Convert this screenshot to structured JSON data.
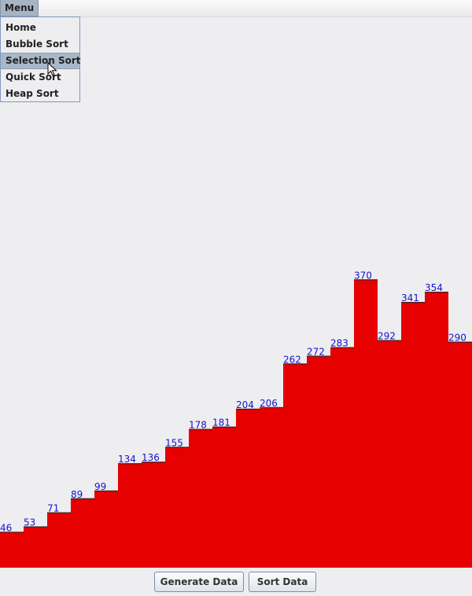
{
  "menubar": {
    "menu_label": "Menu"
  },
  "menu": {
    "items": [
      "Home",
      "Bubble Sort",
      "Selection Sort",
      "Quick Sort",
      "Heap Sort"
    ],
    "highlighted_index": 2
  },
  "chart_data": {
    "type": "bar",
    "values": [
      46,
      53,
      71,
      89,
      99,
      134,
      136,
      155,
      178,
      181,
      204,
      206,
      262,
      272,
      283,
      370,
      292,
      341,
      354,
      290
    ],
    "bar_color": "#e60000",
    "label_color": "#1414cc"
  },
  "buttons": {
    "generate_label": "Generate Data",
    "sort_label": "Sort Data"
  }
}
